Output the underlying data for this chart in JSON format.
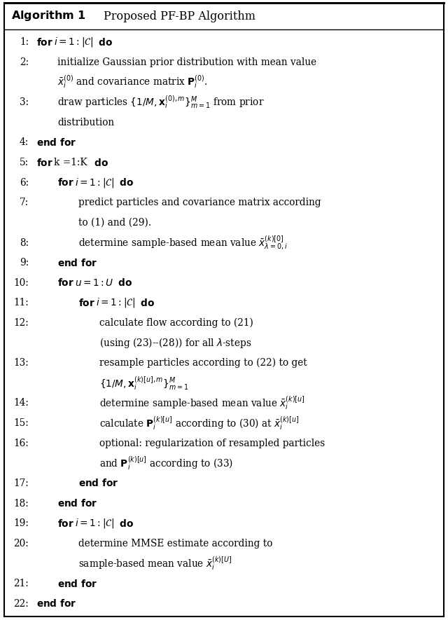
{
  "bg_color": "#ffffff",
  "figsize": [
    6.4,
    8.85
  ],
  "dpi": 100,
  "lines": [
    {
      "num": "1:",
      "indent": 0,
      "bold_prefix": "for ",
      "rest": "$i = 1 : |\\mathcal{C}|$ ",
      "bold_suffix": "do"
    },
    {
      "num": "2:",
      "indent": 1,
      "bold_prefix": "",
      "rest": "initialize Gaussian prior distribution with mean value",
      "bold_suffix": ""
    },
    {
      "num": "",
      "indent": 1,
      "bold_prefix": "",
      "rest": "$\\bar{x}_i^{(0)}$ and covariance matrix $\\mathbf{P}_i^{(0)}$.",
      "bold_suffix": ""
    },
    {
      "num": "3:",
      "indent": 1,
      "bold_prefix": "",
      "rest": "draw particles $\\{1/M, \\mathbf{x}_i^{(0),m}\\}_{m=1}^{M}$ from prior",
      "bold_suffix": ""
    },
    {
      "num": "",
      "indent": 1,
      "bold_prefix": "",
      "rest": "distribution",
      "bold_suffix": ""
    },
    {
      "num": "4:",
      "indent": 0,
      "bold_prefix": "end for",
      "rest": "",
      "bold_suffix": ""
    },
    {
      "num": "5:",
      "indent": 0,
      "bold_prefix": "for ",
      "rest": "k =1:K ",
      "bold_suffix": "do"
    },
    {
      "num": "6:",
      "indent": 1,
      "bold_prefix": "for ",
      "rest": "$i = 1 : |\\mathcal{C}|$ ",
      "bold_suffix": "do"
    },
    {
      "num": "7:",
      "indent": 2,
      "bold_prefix": "",
      "rest": "predict particles and covariance matrix according",
      "bold_suffix": ""
    },
    {
      "num": "",
      "indent": 2,
      "bold_prefix": "",
      "rest": "to (1) and (29).",
      "bold_suffix": ""
    },
    {
      "num": "8:",
      "indent": 2,
      "bold_prefix": "",
      "rest": "determine sample-based mean value $\\bar{x}_{\\lambda=0,i}^{(k)[0]}$",
      "bold_suffix": ""
    },
    {
      "num": "9:",
      "indent": 1,
      "bold_prefix": "end for",
      "rest": "",
      "bold_suffix": ""
    },
    {
      "num": "10:",
      "indent": 1,
      "bold_prefix": "for ",
      "rest": "$u = 1 : U$ ",
      "bold_suffix": "do"
    },
    {
      "num": "11:",
      "indent": 2,
      "bold_prefix": "for ",
      "rest": "$i = 1 : |\\mathcal{C}|$ ",
      "bold_suffix": "do"
    },
    {
      "num": "12:",
      "indent": 3,
      "bold_prefix": "",
      "rest": "calculate flow according to (21)",
      "bold_suffix": ""
    },
    {
      "num": "",
      "indent": 3,
      "bold_prefix": "",
      "rest": "(using (23)--(28)) for all $\\lambda$-steps",
      "bold_suffix": ""
    },
    {
      "num": "13:",
      "indent": 3,
      "bold_prefix": "",
      "rest": "resample particles according to (22) to get",
      "bold_suffix": ""
    },
    {
      "num": "",
      "indent": 3,
      "bold_prefix": "",
      "rest": "$\\{1/M, \\mathbf{x}_i^{(k)[u],m}\\}_{m=1}^{M}$",
      "bold_suffix": ""
    },
    {
      "num": "14:",
      "indent": 3,
      "bold_prefix": "",
      "rest": "determine sample-based mean value $\\bar{x}_i^{(k)[u]}$",
      "bold_suffix": ""
    },
    {
      "num": "15:",
      "indent": 3,
      "bold_prefix": "",
      "rest": "calculate $\\mathbf{P}_i^{(k)[u]}$ according to (30) at $\\bar{x}_i^{(k)[u]}$",
      "bold_suffix": ""
    },
    {
      "num": "16:",
      "indent": 3,
      "bold_prefix": "",
      "rest": "optional: regularization of resampled particles",
      "bold_suffix": ""
    },
    {
      "num": "",
      "indent": 3,
      "bold_prefix": "",
      "rest": "and $\\mathbf{P}_i^{(k)[u]}$ according to (33)",
      "bold_suffix": ""
    },
    {
      "num": "17:",
      "indent": 2,
      "bold_prefix": "end for",
      "rest": "",
      "bold_suffix": ""
    },
    {
      "num": "18:",
      "indent": 1,
      "bold_prefix": "end for",
      "rest": "",
      "bold_suffix": ""
    },
    {
      "num": "19:",
      "indent": 1,
      "bold_prefix": "for ",
      "rest": "$i = 1 : |\\mathcal{C}|$ ",
      "bold_suffix": "do"
    },
    {
      "num": "20:",
      "indent": 2,
      "bold_prefix": "",
      "rest": "determine MMSE estimate according to",
      "bold_suffix": ""
    },
    {
      "num": "",
      "indent": 2,
      "bold_prefix": "",
      "rest": "sample-based mean value $\\bar{x}_i^{(k)[U]}$",
      "bold_suffix": ""
    },
    {
      "num": "21:",
      "indent": 1,
      "bold_prefix": "end for",
      "rest": "",
      "bold_suffix": ""
    },
    {
      "num": "22:",
      "indent": 0,
      "bold_prefix": "end for",
      "rest": "",
      "bold_suffix": ""
    }
  ]
}
